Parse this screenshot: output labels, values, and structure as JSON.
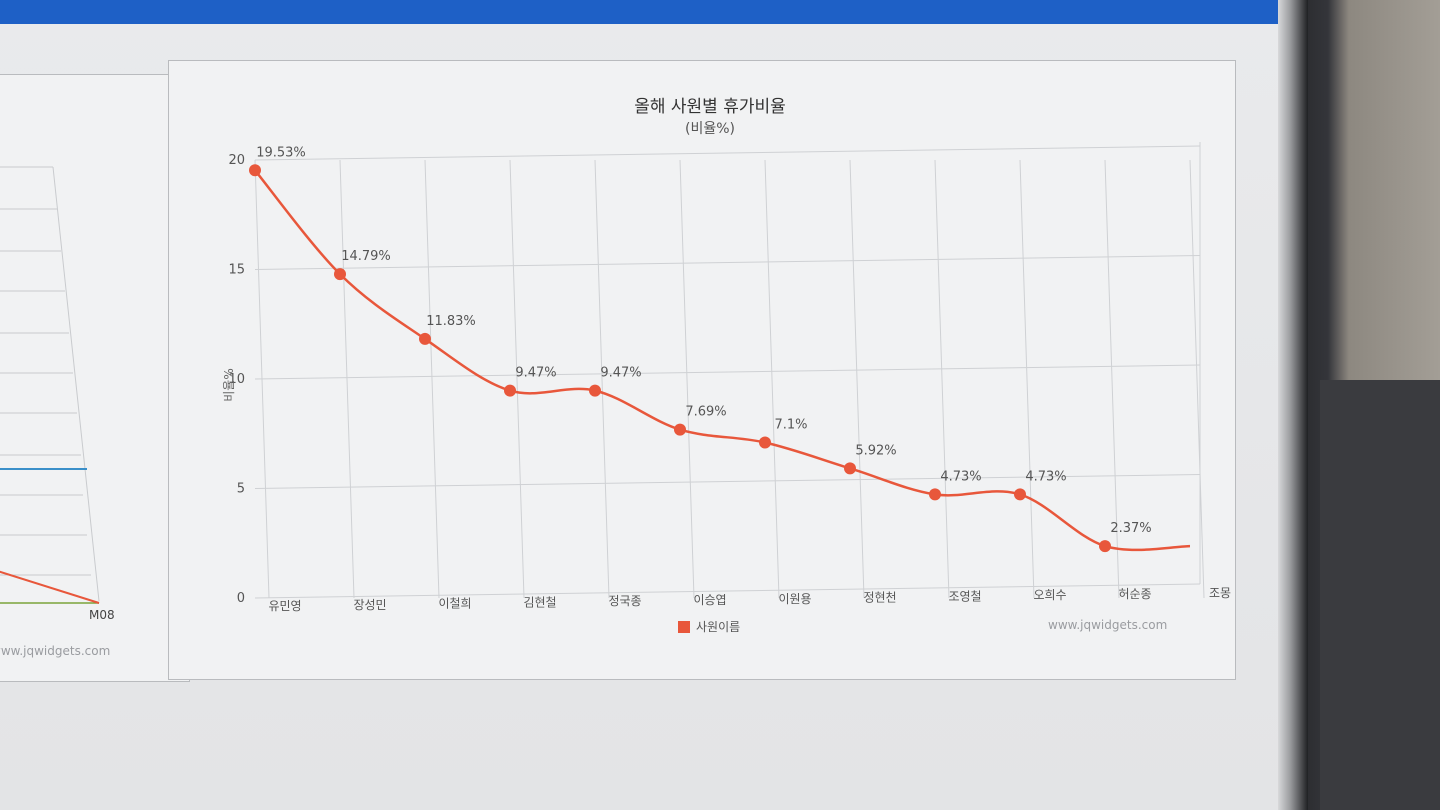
{
  "left_chart": {
    "x_tick_label": "M08",
    "watermark": "www.jqwidgets.com"
  },
  "main_chart": {
    "watermark": "www.jqwidgets.com",
    "legend_label": "사원이름"
  },
  "colors": {
    "series": "#e8573b",
    "left_blue_line": "#3a8fc9",
    "left_green_line": "#7aa33b",
    "topbar": "#1e60c6"
  },
  "chart_data": {
    "type": "line",
    "title": "올해 사원별 휴가비율",
    "subtitle": "(비율%)",
    "xlabel": "",
    "ylabel": "비율%",
    "ylim": [
      0,
      20
    ],
    "y_ticks": [
      0,
      5,
      10,
      15,
      20
    ],
    "grid": true,
    "legend_position": "bottom",
    "categories": [
      "유민영",
      "장성민",
      "이철희",
      "김현철",
      "정국종",
      "이승엽",
      "이원용",
      "정현천",
      "조영철",
      "오희수",
      "허순종",
      "조몽"
    ],
    "series": [
      {
        "name": "사원이름",
        "values": [
          19.53,
          14.79,
          11.83,
          9.47,
          9.47,
          7.69,
          7.1,
          5.92,
          4.73,
          4.73,
          2.37,
          2.37
        ],
        "data_labels": [
          "19.53%",
          "14.79%",
          "11.83%",
          "9.47%",
          "9.47%",
          "7.69%",
          "7.1%",
          "5.92%",
          "4.73%",
          "4.73%",
          "2.37%",
          ""
        ]
      }
    ]
  }
}
